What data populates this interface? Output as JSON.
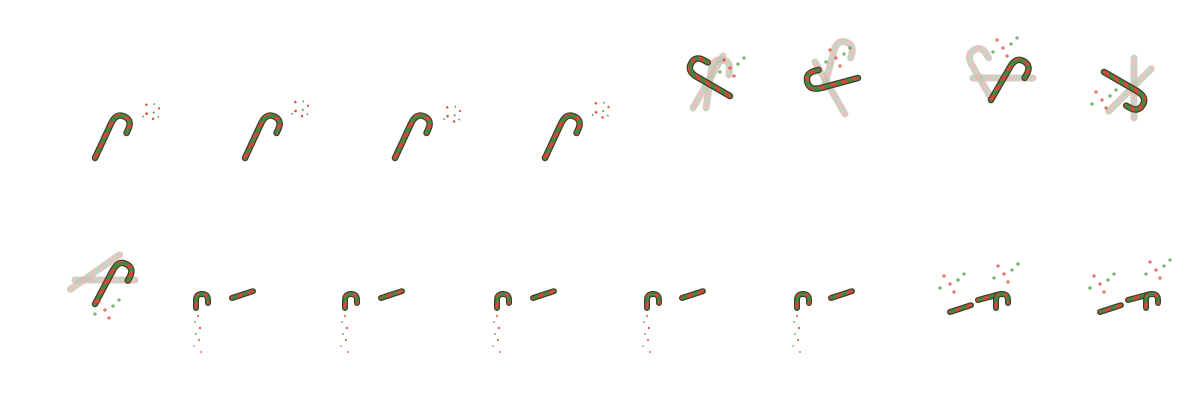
{
  "sprite_sheet": {
    "columns": 8,
    "rows": 2,
    "frame_count": 16,
    "background": "#ffffff",
    "colors": {
      "cane_red": "#d9473a",
      "cane_green": "#3f8a3c",
      "cane_outline": "#3b3f2c",
      "ghost_red": "#e0b7b0",
      "ghost_green": "#b8c9b4",
      "spark_red": "#dd4a3a",
      "spark_green": "#4f9c4a"
    },
    "frames": [
      {
        "index": 1,
        "phase": "spark",
        "cane_count": 1
      },
      {
        "index": 2,
        "phase": "spark",
        "cane_count": 1
      },
      {
        "index": 3,
        "phase": "spark",
        "cane_count": 1
      },
      {
        "index": 4,
        "phase": "spark",
        "cane_count": 1
      },
      {
        "index": 5,
        "phase": "spin",
        "cane_count": 1
      },
      {
        "index": 6,
        "phase": "spin",
        "cane_count": 1
      },
      {
        "index": 7,
        "phase": "spin",
        "cane_count": 1
      },
      {
        "index": 8,
        "phase": "spin",
        "cane_count": 1
      },
      {
        "index": 9,
        "phase": "spin",
        "cane_count": 1
      },
      {
        "index": 10,
        "phase": "break",
        "cane_count": 2
      },
      {
        "index": 11,
        "phase": "break",
        "cane_count": 2
      },
      {
        "index": 12,
        "phase": "break",
        "cane_count": 2
      },
      {
        "index": 13,
        "phase": "break",
        "cane_count": 2
      },
      {
        "index": 14,
        "phase": "break",
        "cane_count": 2
      },
      {
        "index": 15,
        "phase": "scatter",
        "cane_count": 2
      },
      {
        "index": 16,
        "phase": "scatter",
        "cane_count": 2
      }
    ]
  }
}
